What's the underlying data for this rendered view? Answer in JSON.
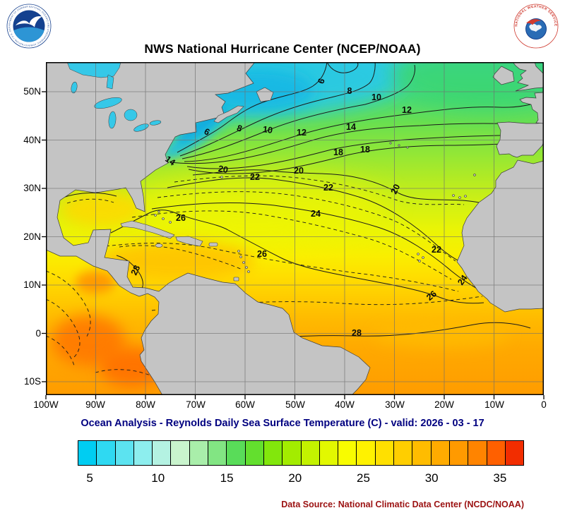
{
  "header": {
    "title": "NWS National Hurricane Center (NCEP/NOAA)",
    "noaa_ring_text": "NATIONAL OCEANIC AND ATMOSPHERIC ADMINISTRATION • U.S. DEPARTMENT OF COMMERCE",
    "nws_ring_text": "NATIONAL WEATHER SERVICE"
  },
  "map": {
    "subtitle": "Ocean Analysis - Reynolds Daily Sea Surface Temperature (C) - valid: 2026 - 03 - 17",
    "y_ticks": [
      "50N",
      "40N",
      "30N",
      "20N",
      "10N",
      "0",
      "10S"
    ],
    "x_ticks": [
      "100W",
      "90W",
      "80W",
      "70W",
      "60W",
      "50W",
      "40W",
      "30W",
      "20W",
      "10W",
      "0"
    ],
    "contour_labels": [
      "6",
      "8",
      "10",
      "12",
      "14",
      "6",
      "8",
      "10",
      "12",
      "14",
      "18",
      "18",
      "20",
      "22",
      "20",
      "22",
      "20",
      "24",
      "26",
      "26",
      "22",
      "24",
      "26",
      "28",
      "28"
    ]
  },
  "colorbar": {
    "ticks": [
      "5",
      "10",
      "15",
      "20",
      "25",
      "30",
      "35"
    ],
    "colors": [
      "#00cdf2",
      "#2fd9f2",
      "#5ce3f0",
      "#8deeee",
      "#b4f2e2",
      "#c9f4cd",
      "#a9eeaa",
      "#82e583",
      "#59dc59",
      "#63df2e",
      "#82e70c",
      "#a3ec00",
      "#c3f200",
      "#e2f800",
      "#f8fc00",
      "#fff200",
      "#ffe000",
      "#ffce00",
      "#ffbc00",
      "#ffab00",
      "#ff9a00",
      "#ff8400",
      "#ff6000",
      "#f22d00"
    ]
  },
  "footer": {
    "data_source": "Data Source: National Climatic Data Center (NCDC/NOAA)"
  }
}
